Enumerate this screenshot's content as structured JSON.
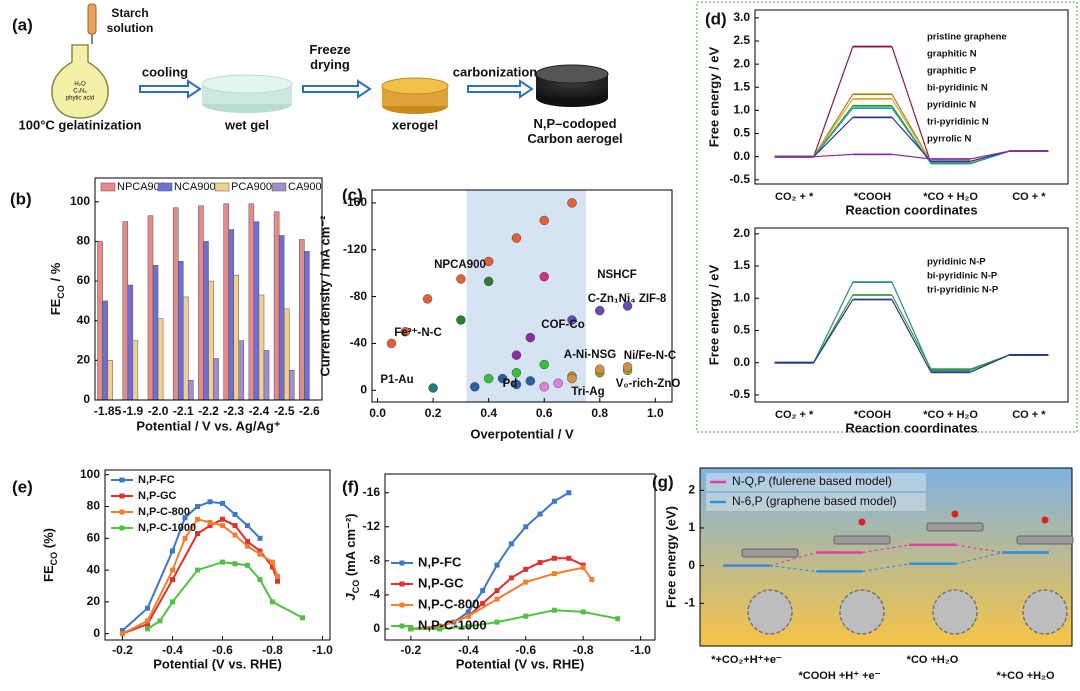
{
  "schematic": {
    "label": "(a)",
    "dropper_label": "Starch solution",
    "flask_label": [
      "H₂O",
      "C₃N₆",
      "phytic acid"
    ],
    "steps": [
      "cooling",
      "Freeze drying",
      "carbonization"
    ],
    "stages": [
      "100°C gelatinization",
      "wet gel",
      "xerogel",
      "N,P–codoped Carbon aerogel"
    ]
  },
  "chart_data": [
    {
      "label": "(b)",
      "type": "bar",
      "categories": [
        "-1.85",
        "-1.9",
        "-2.0",
        "-2.1",
        "-2.2",
        "-2.3",
        "-2.4",
        "-2.5",
        "-2.6"
      ],
      "series": [
        {
          "name": "NPCA900",
          "color": "#e58a8a",
          "values": [
            80,
            90,
            93,
            97,
            98,
            99,
            99,
            95,
            81
          ]
        },
        {
          "name": "NCA900",
          "color": "#6d6fd4",
          "values": [
            50,
            58,
            68,
            70,
            80,
            86,
            90,
            83,
            75
          ]
        },
        {
          "name": "PCA900",
          "color": "#f1cf92",
          "values": [
            20,
            30,
            41,
            52,
            60,
            63,
            53,
            46,
            null
          ]
        },
        {
          "name": "CA900",
          "color": "#9f8fcf",
          "values": [
            null,
            null,
            null,
            10,
            21,
            30,
            25,
            15,
            null
          ]
        }
      ],
      "ylim": [
        0,
        112
      ],
      "yticks": [
        0,
        20,
        40,
        60,
        80,
        100
      ],
      "x_label": "Potential / V vs. Ag/Ag⁺",
      "y_label": [
        "FE",
        "CO",
        " / %"
      ],
      "legend": "top"
    },
    {
      "label": "(c)",
      "type": "scatter",
      "x_label": "Overpotential / V",
      "y_label": "Current density / mA cm⁻²",
      "xlim": [
        -0.02,
        1.06
      ],
      "xticks": [
        {
          "value": 0,
          "label": "0.0"
        },
        0.2,
        0.4,
        0.6,
        0.8,
        {
          "value": 1,
          "label": "1.0"
        }
      ],
      "ylim": [
        10,
        -171
      ],
      "yticks": [
        0,
        -40,
        -80,
        -120,
        -160
      ],
      "shaded_xrange": [
        0.32,
        0.75
      ],
      "series": [
        {
          "name": "NPCA900",
          "color": "#e0603a",
          "x": [
            0.05,
            0.1,
            0.18,
            0.3,
            0.4,
            0.5,
            0.6,
            0.7
          ],
          "values": [
            -40,
            -50,
            -78,
            -95,
            -110,
            -130,
            -145,
            -160
          ]
        },
        {
          "name": "Fe³⁺-N-C",
          "color": "#2f7a33",
          "x": [
            0.3,
            0.4
          ],
          "values": [
            -60,
            -93
          ]
        },
        {
          "name": "NSHCF",
          "color": "#d0308a",
          "x": [
            0.6
          ],
          "values": [
            -97
          ]
        },
        {
          "name": "C-Zn₁Ni₄ ZIF-8",
          "color": "#6a4ab0",
          "x": [
            0.7,
            0.8,
            0.9
          ],
          "values": [
            -60,
            -68,
            -72
          ]
        },
        {
          "name": "COF-Co",
          "color": "#8a2f9e",
          "x": [
            0.5,
            0.55
          ],
          "values": [
            -30,
            -45
          ]
        },
        {
          "name": "A-Ni-NSG",
          "color": "#34c03a",
          "x": [
            0.4,
            0.5,
            0.6
          ],
          "values": [
            -10,
            -15,
            -22
          ]
        },
        {
          "name": "Ni/Fe-N-C",
          "color": "#9a9a20",
          "x": [
            0.7,
            0.8,
            0.9
          ],
          "values": [
            -12,
            -15,
            -17
          ]
        },
        {
          "name": "P1-Au",
          "color": "#1f7f80",
          "x": [
            0.2
          ],
          "values": [
            -2
          ]
        },
        {
          "name": "Pd",
          "color": "#2a5fa8",
          "x": [
            0.35,
            0.45,
            0.5,
            0.55
          ],
          "values": [
            -3,
            -10,
            -5,
            -8
          ]
        },
        {
          "name": "Tri-Ag",
          "color": "#e27fe0",
          "x": [
            0.6,
            0.65
          ],
          "values": [
            -3,
            -6
          ]
        },
        {
          "name": "V₀-rich-ZnO",
          "color": "#d0904c",
          "x": [
            0.7,
            0.8,
            0.9
          ],
          "values": [
            -10,
            -18,
            -20
          ]
        }
      ]
    },
    {
      "label": "(d)",
      "type": "energy",
      "connector": "solid",
      "categories": [
        "CO₂ + *",
        "*COOH",
        "*CO + H₂O",
        "CO + *"
      ],
      "x_label": "Reaction coordinates",
      "y_label": "Free energy / eV",
      "ylim": [
        -0.59,
        3.17
      ],
      "yticks": [
        -0.5,
        {
          "value": 0,
          "label": "0.0"
        },
        0.5,
        {
          "value": 1,
          "label": "1.0"
        },
        1.5,
        {
          "value": 2,
          "label": "2.0"
        },
        2.5,
        {
          "value": 3,
          "label": "3.0"
        }
      ],
      "series": [
        {
          "name": "pristine graphene",
          "color": "#8b1a3a",
          "values": [
            0,
            2.38,
            -0.15,
            0.12
          ]
        },
        {
          "name": "graphitic N",
          "color": "#a0861e",
          "values": [
            0,
            1.35,
            -0.12,
            0.12
          ]
        },
        {
          "name": "graphitic P",
          "color": "#e8a22c",
          "values": [
            0,
            1.25,
            -0.12,
            0.12
          ]
        },
        {
          "name": "bi-pyridinic N",
          "color": "#2a9a3a",
          "values": [
            0,
            1.1,
            -0.15,
            0.12
          ]
        },
        {
          "name": "pyridinic N",
          "color": "#20a0a0",
          "values": [
            0,
            1.05,
            -0.15,
            0.12
          ]
        },
        {
          "name": "tri-pyridinic N",
          "color": "#2a3a8a",
          "values": [
            0,
            0.85,
            -0.1,
            0.12
          ]
        },
        {
          "name": "pyrrolic N",
          "color": "#8a30a0",
          "values": [
            0,
            0.05,
            -0.05,
            0.12
          ]
        }
      ]
    },
    {
      "type": "energy",
      "connector": "solid",
      "categories": [
        "CO₂ + *",
        "*COOH",
        "*CO + H₂O",
        "CO + *"
      ],
      "x_label": "Reaction coordinates",
      "y_label": "Free energy / eV",
      "ylim": [
        -0.61,
        2.09
      ],
      "yticks": [
        -0.5,
        {
          "value": 0,
          "label": "0.0"
        },
        0.5,
        {
          "value": 1,
          "label": "1.0"
        },
        1.5,
        {
          "value": 2,
          "label": "2.0"
        }
      ],
      "series": [
        {
          "name": "pyridinic N-P",
          "color": "#2a8a8a",
          "values": [
            0,
            1.25,
            -0.12,
            0.12
          ]
        },
        {
          "name": "bi-pyridinic N-P",
          "color": "#3a9a3a",
          "values": [
            0,
            1.05,
            -0.1,
            0.12
          ]
        },
        {
          "name": "tri-pyridinic N-P",
          "color": "#2a3a8a",
          "values": [
            0,
            0.98,
            -0.15,
            0.12
          ]
        }
      ]
    },
    {
      "label": "(e)",
      "type": "line",
      "legend": "upper left",
      "x_label": "Potential (V vs. RHE)",
      "y_label": [
        "FE",
        "CO",
        " (%)"
      ],
      "xlim": [
        -0.13,
        -1.03
      ],
      "xticks": [
        -0.2,
        -0.4,
        -0.6,
        -0.8,
        {
          "value": -1,
          "label": "-1.0"
        }
      ],
      "ylim": [
        -4,
        103
      ],
      "yticks": [
        0,
        20,
        40,
        60,
        80,
        100
      ],
      "series": [
        {
          "name": "N,P-FC",
          "color": "#3a78c8",
          "x": [
            -0.2,
            -0.3,
            -0.4,
            -0.45,
            -0.5,
            -0.55,
            -0.6,
            -0.65,
            -0.7,
            -0.75
          ],
          "values": [
            2,
            16,
            52,
            73,
            80,
            83,
            82,
            75,
            68,
            60
          ]
        },
        {
          "name": "N,P-GC",
          "color": "#e03030",
          "x": [
            -0.2,
            -0.3,
            -0.4,
            -0.5,
            -0.55,
            -0.6,
            -0.65,
            -0.7,
            -0.75,
            -0.8,
            -0.82
          ],
          "values": [
            0,
            6,
            34,
            63,
            68,
            72,
            68,
            58,
            52,
            42,
            33
          ]
        },
        {
          "name": "N,P-C-800",
          "color": "#f08030",
          "x": [
            -0.2,
            -0.3,
            -0.4,
            -0.45,
            -0.5,
            -0.55,
            -0.6,
            -0.65,
            -0.7,
            -0.75,
            -0.8,
            -0.82
          ],
          "values": [
            0,
            8,
            40,
            60,
            72,
            70,
            68,
            62,
            55,
            50,
            45,
            36
          ]
        },
        {
          "name": "N,P-C-1000",
          "color": "#50c040",
          "x": [
            -0.3,
            -0.35,
            -0.4,
            -0.5,
            -0.6,
            -0.65,
            -0.7,
            -0.75,
            -0.8,
            -0.92
          ],
          "values": [
            3,
            8,
            20,
            40,
            45,
            44,
            43,
            34,
            20,
            10
          ]
        }
      ]
    },
    {
      "label": "(f)",
      "type": "line",
      "legend": "lower left",
      "x_label": "Potential (V vs. RHE)",
      "y_label": [
        "J",
        "CO",
        " (mA cm⁻²)"
      ],
      "xlim": [
        -0.11,
        -1.05
      ],
      "xticks": [
        -0.2,
        -0.4,
        -0.6,
        -0.8,
        {
          "value": -1,
          "label": "-1.0"
        }
      ],
      "ylim": [
        1.3,
        -18.2
      ],
      "yticks": [
        0,
        -4,
        -8,
        -12,
        -16
      ],
      "series": [
        {
          "name": "N,P-FC",
          "color": "#3a78c8",
          "x": [
            -0.2,
            -0.3,
            -0.35,
            -0.4,
            -0.45,
            -0.5,
            -0.55,
            -0.6,
            -0.65,
            -0.7,
            -0.75
          ],
          "values": [
            0,
            -0.3,
            -0.8,
            -2,
            -4.5,
            -7.5,
            -10,
            -12,
            -13.5,
            -15,
            -16
          ]
        },
        {
          "name": "N,P-GC",
          "color": "#e03030",
          "x": [
            -0.2,
            -0.3,
            -0.4,
            -0.45,
            -0.5,
            -0.55,
            -0.6,
            -0.65,
            -0.7,
            -0.75,
            -0.8
          ],
          "values": [
            0,
            -0.3,
            -1.5,
            -3,
            -4.5,
            -6,
            -7,
            -7.8,
            -8.3,
            -8.3,
            -7.5
          ]
        },
        {
          "name": "N,P-C-800",
          "color": "#f08030",
          "x": [
            -0.2,
            -0.3,
            -0.4,
            -0.5,
            -0.6,
            -0.7,
            -0.8,
            -0.83
          ],
          "values": [
            0,
            -0.2,
            -1.5,
            -3.5,
            -5.5,
            -6.5,
            -7.2,
            -5.8
          ]
        },
        {
          "name": "N,P-C-1000",
          "color": "#50c040",
          "x": [
            -0.2,
            -0.3,
            -0.4,
            -0.5,
            -0.6,
            -0.7,
            -0.8,
            -0.92
          ],
          "values": [
            0,
            0,
            -0.3,
            -0.8,
            -1.5,
            -2.2,
            -2,
            -1.2
          ]
        }
      ]
    },
    {
      "label": "(g)",
      "type": "energy",
      "connector": "dashed",
      "legend": "upper left",
      "background": [
        "#7fb2e0",
        "#f6c445"
      ],
      "categories": [
        "*+CO₂+H⁺+e⁻",
        "*COOH +H⁺ +e⁻",
        "*CO +H₂O",
        "*+CO +H₂O"
      ],
      "y_label": "Free energy (eV)",
      "ylim": [
        -2.13,
        2.59
      ],
      "yticks": [
        -1,
        0,
        1,
        2
      ],
      "series": [
        {
          "name": "N-Q,P (fulerene based model)",
          "color": "#e040a0",
          "values": [
            0,
            0.35,
            0.55,
            0.35
          ]
        },
        {
          "name": "N-6,P (graphene based model)",
          "color": "#3090e0",
          "values": [
            0,
            -0.15,
            0.05,
            0.35
          ]
        }
      ]
    }
  ]
}
